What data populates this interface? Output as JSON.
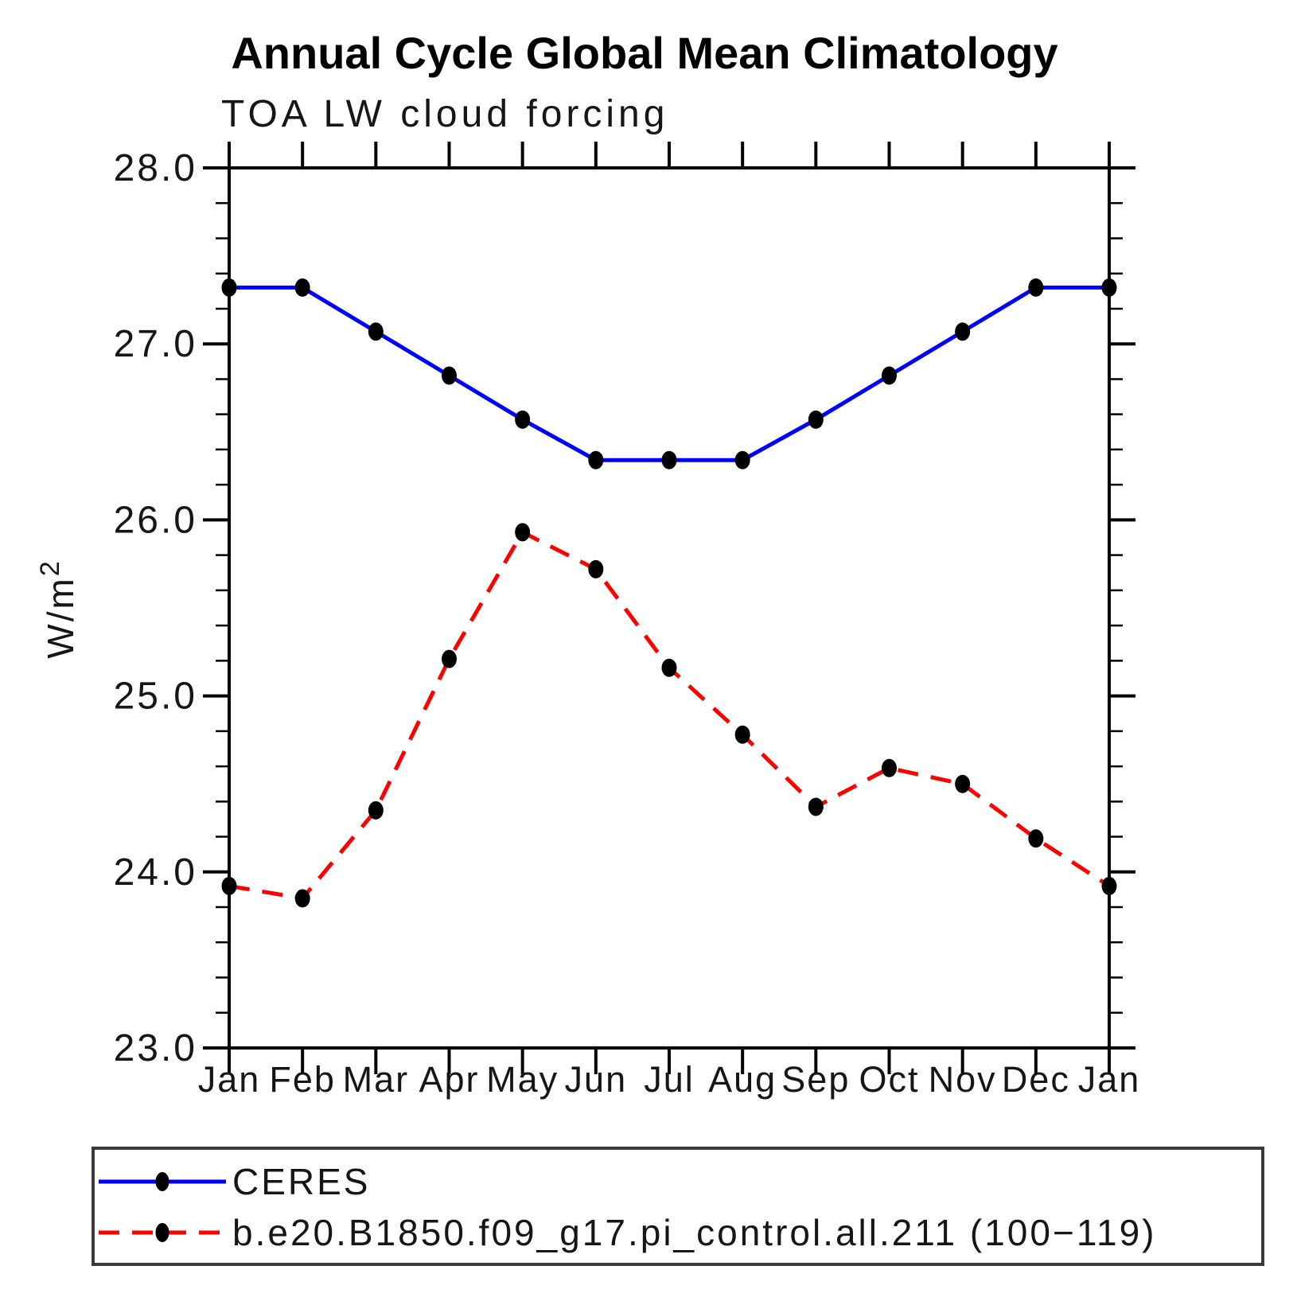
{
  "title": "Annual Cycle Global Mean Climatology",
  "subtitle": "TOA LW cloud forcing",
  "chart_data": {
    "type": "line",
    "title": "Annual Cycle Global Mean Climatology",
    "subtitle": "TOA LW cloud forcing",
    "ylabel": "W/m²",
    "ylabel_base": "W/m",
    "ylabel_sup": "2",
    "xlabel": "",
    "categories": [
      "Jan",
      "Feb",
      "Mar",
      "Apr",
      "May",
      "Jun",
      "Jul",
      "Aug",
      "Sep",
      "Oct",
      "Nov",
      "Dec",
      "Jan"
    ],
    "series": [
      {
        "name": "CERES",
        "color": "#0000ff",
        "line_style": "solid",
        "marker": "filled-circle",
        "marker_color": "#000000",
        "values": [
          27.32,
          27.32,
          27.07,
          26.82,
          26.57,
          26.34,
          26.34,
          26.34,
          26.57,
          26.82,
          27.07,
          27.32,
          27.32
        ]
      },
      {
        "name": "b.e20.B1850.f09_g17.pi_control.all.211 (100−119)",
        "color": "#ff0000",
        "line_style": "dashed",
        "marker": "filled-circle",
        "marker_color": "#000000",
        "values": [
          23.92,
          23.85,
          24.35,
          25.21,
          25.93,
          25.72,
          25.16,
          24.78,
          24.37,
          24.59,
          24.5,
          24.19,
          23.92
        ]
      }
    ],
    "ylim": [
      23.0,
      28.0
    ],
    "y_ticks": [
      {
        "value": 23.0,
        "label": "23.0"
      },
      {
        "value": 24.0,
        "label": "24.0"
      },
      {
        "value": 25.0,
        "label": "25.0"
      },
      {
        "value": 26.0,
        "label": "26.0"
      },
      {
        "value": 27.0,
        "label": "27.0"
      },
      {
        "value": 28.0,
        "label": "28.0"
      }
    ],
    "y_minor_step": 0.2,
    "grid": false,
    "legend_position": "bottom"
  }
}
